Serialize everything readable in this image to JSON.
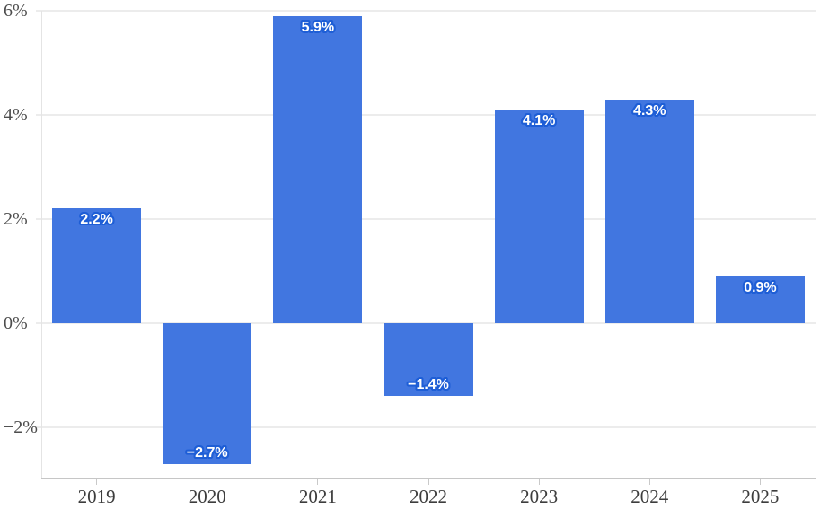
{
  "chart_data": {
    "type": "bar",
    "categories": [
      "2019",
      "2020",
      "2021",
      "2022",
      "2023",
      "2024",
      "2025"
    ],
    "values": [
      2.2,
      -2.7,
      5.9,
      -1.4,
      4.1,
      4.3,
      0.9
    ],
    "value_labels": [
      "2.2%",
      "−2.7%",
      "5.9%",
      "−1.4%",
      "4.1%",
      "4.3%",
      "0.9%"
    ],
    "y_ticks": [
      {
        "value": 6,
        "label": "6%"
      },
      {
        "value": 4,
        "label": "4%"
      },
      {
        "value": 2,
        "label": "2%"
      },
      {
        "value": 0,
        "label": "0%"
      },
      {
        "value": -2,
        "label": "−2%"
      }
    ],
    "ylim": [
      -3,
      6
    ],
    "grid": true,
    "legend": "none",
    "bar_color": "#4176e0",
    "value_label_text_color": "#ffffff",
    "value_label_halo_color": "#1e5ed6",
    "gridline_color": "#ececec",
    "axis_line_color": "#c6c6c6"
  }
}
